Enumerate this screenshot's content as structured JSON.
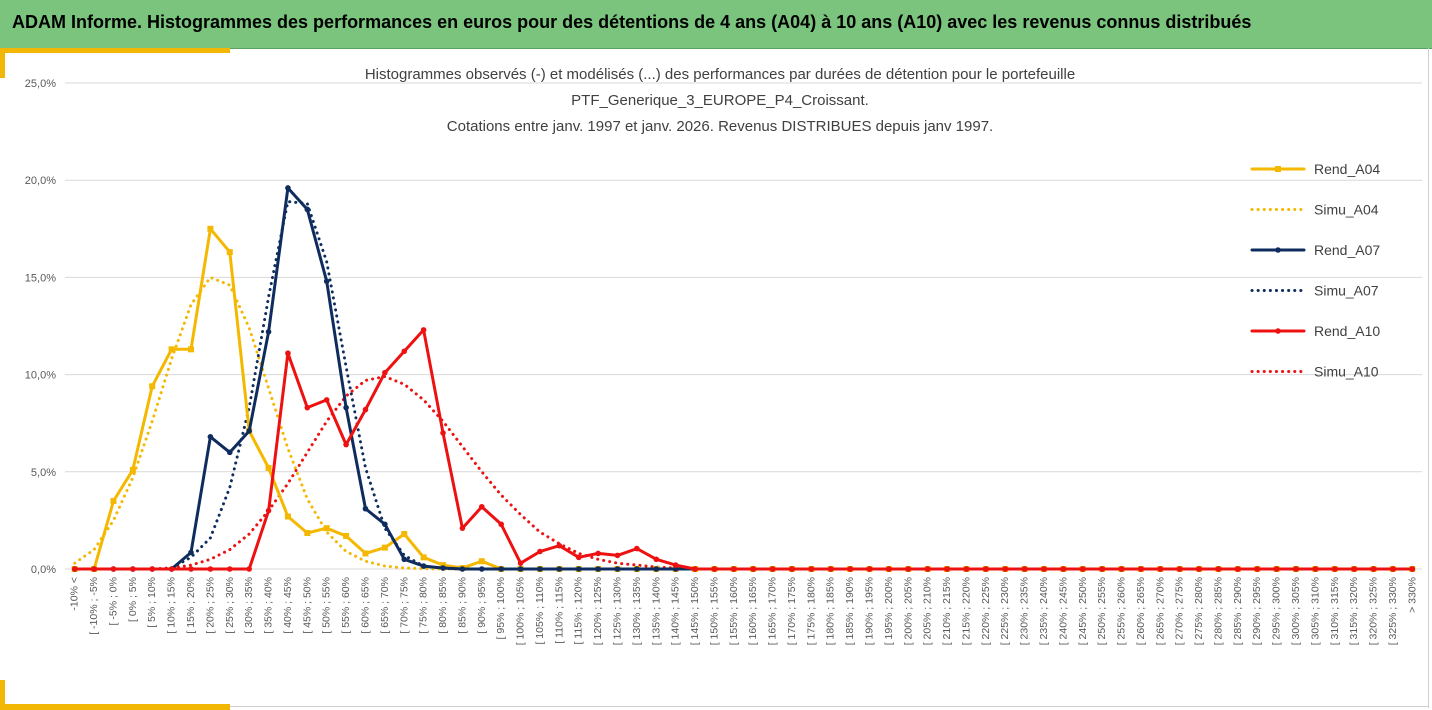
{
  "header": {
    "title": "ADAM Informe. Histogrammes des performances en euros pour des détentions de 4 ans (A04) à 10 ans (A10) avec les revenus connus distribués"
  },
  "colors": {
    "header_bg": "#7ac47d",
    "accent": "#f2b705",
    "a04": "#f5b800",
    "a07": "#0e2d5e",
    "a10": "#ee1111",
    "grid": "#d9d9d9"
  },
  "chart_data": {
    "type": "line",
    "title_lines": [
      "Histogrammes observés (-) et modélisés (...) des performances par durées de détention pour le portefeuille",
      "PTF_Generique_3_EUROPE_P4_Croissant.",
      "Cotations entre janv. 1997 et janv. 2026. Revenus DISTRIBUES depuis janv 1997."
    ],
    "ylim": [
      0,
      25
    ],
    "yticks": [
      0,
      5,
      10,
      15,
      20,
      25
    ],
    "ytick_labels": [
      "0,0%",
      "5,0%",
      "10,0%",
      "15,0%",
      "20,0%",
      "25,0%"
    ],
    "grid": true,
    "legend_position": "right",
    "categories": [
      "-10% <",
      "[ -10% ; -5%",
      "[ -5% ; 0%",
      "[ 0% ; 5%",
      "[ 5% ; 10%",
      "[ 10% ; 15%",
      "[ 15% ; 20%",
      "[ 20% ; 25%",
      "[ 25% ; 30%",
      "[ 30% ; 35%",
      "[ 35% ; 40%",
      "[ 40% ; 45%",
      "[ 45% ; 50%",
      "[ 50% ; 55%",
      "[ 55% ; 60%",
      "[ 60% ; 65%",
      "[ 65% ; 70%",
      "[ 70% ; 75%",
      "[ 75% ; 80%",
      "[ 80% ; 85%",
      "[ 85% ; 90%",
      "[ 90% ; 95%",
      "[ 95% ; 100%",
      "[ 100% ; 105%",
      "[ 105% ; 110%",
      "[ 110% ; 115%",
      "[ 115% ; 120%",
      "[ 120% ; 125%",
      "[ 125% ; 130%",
      "[ 130% ; 135%",
      "[ 135% ; 140%",
      "[ 140% ; 145%",
      "[ 145% ; 150%",
      "[ 150% ; 155%",
      "[ 155% ; 160%",
      "[ 160% ; 165%",
      "[ 165% ; 170%",
      "[ 170% ; 175%",
      "[ 175% ; 180%",
      "[ 180% ; 185%",
      "[ 185% ; 190%",
      "[ 190% ; 195%",
      "[ 195% ; 200%",
      "[ 200% ; 205%",
      "[ 205% ; 210%",
      "[ 210% ; 215%",
      "[ 215% ; 220%",
      "[ 220% ; 225%",
      "[ 225% ; 230%",
      "[ 230% ; 235%",
      "[ 235% ; 240%",
      "[ 240% ; 245%",
      "[ 245% ; 250%",
      "[ 250% ; 255%",
      "[ 255% ; 260%",
      "[ 260% ; 265%",
      "[ 265% ; 270%",
      "[ 270% ; 275%",
      "[ 275% ; 280%",
      "[ 280% ; 285%",
      "[ 285% ; 290%",
      "[ 290% ; 295%",
      "[ 295% ; 300%",
      "[ 300% ; 305%",
      "[ 305% ; 310%",
      "[ 310% ; 315%",
      "[ 315% ; 320%",
      "[ 320% ; 325%",
      "[ 325% ; 330%",
      "> 330%"
    ],
    "series": [
      {
        "name": "Rend_A04",
        "style": "solid",
        "color": "#f5b800",
        "marker": "square",
        "values": [
          0,
          0,
          3.5,
          5.1,
          9.4,
          11.3,
          11.3,
          17.5,
          16.3,
          7.1,
          5.2,
          2.7,
          1.85,
          2.1,
          1.7,
          0.8,
          1.1,
          1.8,
          0.6,
          0.2,
          0.05,
          0.4,
          0,
          0,
          0,
          0,
          0,
          0,
          0,
          0,
          0,
          0,
          0,
          0,
          0,
          0,
          0,
          0,
          0,
          0,
          0,
          0,
          0,
          0,
          0,
          0,
          0,
          0,
          0,
          0,
          0,
          0,
          0,
          0,
          0,
          0,
          0,
          0,
          0,
          0,
          0,
          0,
          0,
          0,
          0,
          0,
          0,
          0,
          0,
          0
        ]
      },
      {
        "name": "Simu_A04",
        "style": "dotted",
        "color": "#f5b800",
        "values": [
          0.3,
          1.0,
          2.5,
          4.7,
          7.6,
          10.8,
          13.6,
          15.0,
          14.6,
          12.4,
          9.3,
          6.2,
          3.6,
          1.9,
          0.9,
          0.4,
          0.15,
          0.05,
          0.02,
          0,
          0,
          0,
          0,
          0,
          0,
          0,
          0,
          0,
          0,
          0,
          0,
          0,
          0,
          0,
          0,
          0,
          0,
          0,
          0,
          0,
          0,
          0,
          0,
          0,
          0,
          0,
          0,
          0,
          0,
          0,
          0,
          0,
          0,
          0,
          0,
          0,
          0,
          0,
          0,
          0,
          0,
          0,
          0,
          0,
          0,
          0,
          0,
          0,
          0,
          0
        ]
      },
      {
        "name": "Rend_A07",
        "style": "solid",
        "color": "#0e2d5e",
        "marker": "circle",
        "values": [
          0,
          0,
          0,
          0,
          0,
          0,
          0.85,
          6.8,
          6.0,
          7.1,
          12.2,
          19.6,
          18.5,
          14.8,
          8.3,
          3.1,
          2.3,
          0.5,
          0.15,
          0.05,
          0,
          0,
          0,
          0,
          0,
          0,
          0,
          0,
          0,
          0,
          0,
          0,
          0,
          0,
          0,
          0,
          0,
          0,
          0,
          0,
          0,
          0,
          0,
          0,
          0,
          0,
          0,
          0,
          0,
          0,
          0,
          0,
          0,
          0,
          0,
          0,
          0,
          0,
          0,
          0,
          0,
          0,
          0,
          0,
          0,
          0,
          0,
          0,
          0,
          0
        ]
      },
      {
        "name": "Simu_A07",
        "style": "dotted",
        "color": "#0e2d5e",
        "values": [
          0,
          0,
          0,
          0,
          0,
          0.05,
          0.6,
          1.6,
          4.2,
          8.3,
          14.0,
          18.9,
          18.8,
          15.8,
          10.4,
          5.2,
          2.1,
          0.7,
          0.15,
          0.03,
          0,
          0,
          0,
          0,
          0,
          0,
          0,
          0,
          0,
          0,
          0,
          0,
          0,
          0,
          0,
          0,
          0,
          0,
          0,
          0,
          0,
          0,
          0,
          0,
          0,
          0,
          0,
          0,
          0,
          0,
          0,
          0,
          0,
          0,
          0,
          0,
          0,
          0,
          0,
          0,
          0,
          0,
          0,
          0,
          0,
          0,
          0,
          0,
          0,
          0
        ]
      },
      {
        "name": "Rend_A10",
        "style": "solid",
        "color": "#ee1111",
        "marker": "circle",
        "values": [
          0,
          0,
          0,
          0,
          0,
          0,
          0,
          0,
          0,
          0,
          3.0,
          11.1,
          8.3,
          8.7,
          6.4,
          8.2,
          10.1,
          11.2,
          12.3,
          7.0,
          2.1,
          3.2,
          2.3,
          0.3,
          0.9,
          1.2,
          0.6,
          0.8,
          0.7,
          1.05,
          0.5,
          0.2,
          0,
          0,
          0,
          0,
          0,
          0,
          0,
          0,
          0,
          0,
          0,
          0,
          0,
          0,
          0,
          0,
          0,
          0,
          0,
          0,
          0,
          0,
          0,
          0,
          0,
          0,
          0,
          0,
          0,
          0,
          0,
          0,
          0,
          0,
          0,
          0,
          0,
          0
        ]
      },
      {
        "name": "Simu_A10",
        "style": "dotted",
        "color": "#ee1111",
        "values": [
          0,
          0,
          0,
          0,
          0,
          0.05,
          0.2,
          0.5,
          1.0,
          1.8,
          3.0,
          4.4,
          6.0,
          7.6,
          8.9,
          9.7,
          9.9,
          9.5,
          8.7,
          7.6,
          6.3,
          5.0,
          3.8,
          2.8,
          1.9,
          1.3,
          0.8,
          0.5,
          0.3,
          0.2,
          0.1,
          0.05,
          0,
          0,
          0,
          0,
          0,
          0,
          0,
          0,
          0,
          0,
          0,
          0,
          0,
          0,
          0,
          0,
          0,
          0,
          0,
          0,
          0,
          0,
          0,
          0,
          0,
          0,
          0,
          0,
          0,
          0,
          0,
          0,
          0,
          0,
          0,
          0,
          0,
          0
        ]
      }
    ]
  }
}
